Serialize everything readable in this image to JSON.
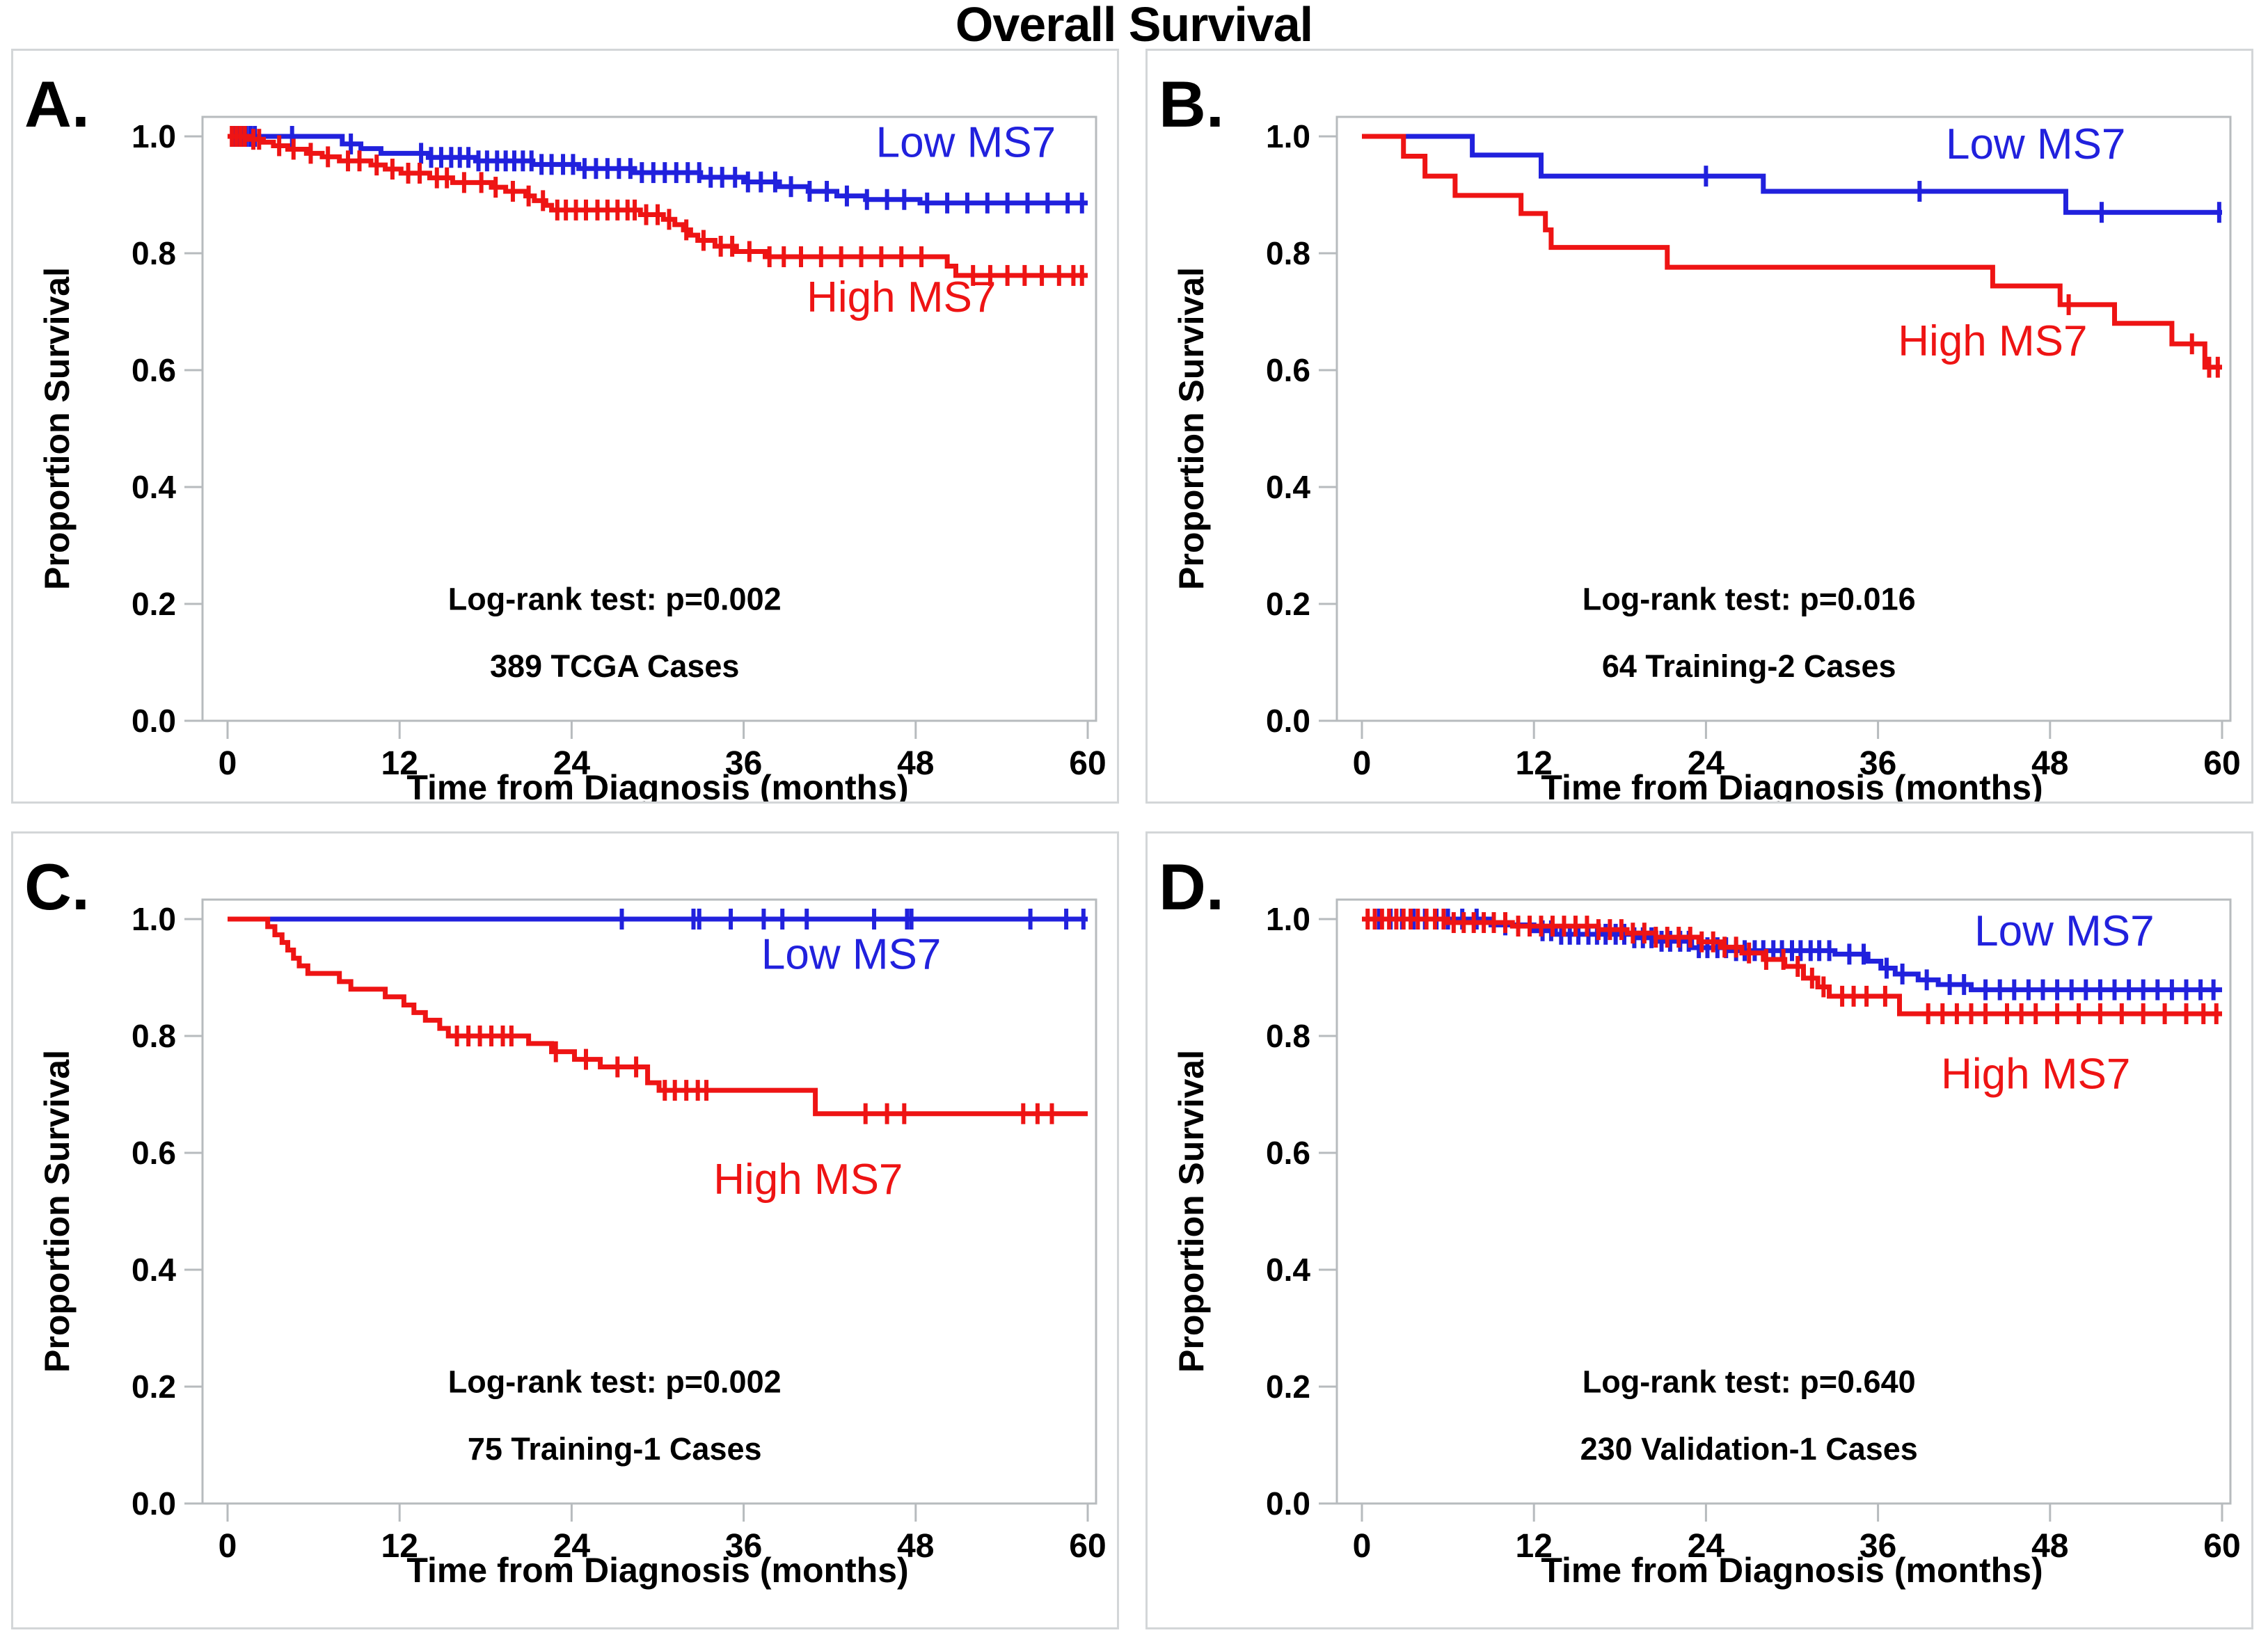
{
  "page": {
    "title": "Overall Survival"
  },
  "style": {
    "blue": "#2121dd",
    "red": "#ee1414",
    "axis_color": "#b7bbbe",
    "text_color": "#000000",
    "background": "#ffffff"
  },
  "chart_data": [
    {
      "type": "line",
      "subtype": "kaplan-meier-step",
      "panel_label": "A.",
      "xlabel": "Time from Diagnosis (months)",
      "ylabel": "Proportion Survival",
      "xlim": [
        0,
        60
      ],
      "ylim": [
        0.0,
        1.0
      ],
      "xticks": [
        0,
        12,
        24,
        36,
        48,
        60
      ],
      "yticks": [
        "1.0",
        "0.8",
        "0.6",
        "0.4",
        "0.2",
        "0.0"
      ],
      "grid": "off",
      "legend_position": "inline-right",
      "annotations": {
        "logrank": "Log-rank test: p=0.002",
        "cases": "389 TCGA Cases",
        "x_month": 27,
        "y_logrank": 0.19,
        "y_cases": 0.075
      },
      "series": [
        {
          "name": "Low MS7",
          "color": "#2121dd",
          "legend": {
            "label": "Low MS7",
            "x": 51.5,
            "y": 0.965
          },
          "steps": [
            [
              0,
              1
            ],
            [
              8,
              0.987
            ],
            [
              9.3,
              0.979
            ],
            [
              10.7,
              0.971
            ],
            [
              14,
              0.964
            ],
            [
              17.3,
              0.958
            ],
            [
              21.3,
              0.952
            ],
            [
              24.5,
              0.945
            ],
            [
              28.4,
              0.938
            ],
            [
              33,
              0.93
            ],
            [
              36,
              0.922
            ],
            [
              38.5,
              0.914
            ],
            [
              40.5,
              0.906
            ],
            [
              42.5,
              0.898
            ],
            [
              44.5,
              0.892
            ],
            [
              48.3,
              0.886
            ],
            [
              60,
              0.886
            ]
          ],
          "censors": [
            0.4,
            0.7,
            1,
            1.3,
            1.6,
            1.9,
            4.5,
            8.6,
            13.5,
            14.2,
            14.9,
            15.6,
            16.2,
            16.8,
            17.5,
            18.1,
            18.8,
            19.4,
            20,
            20.6,
            21.2,
            21.9,
            22.6,
            23.4,
            24.1,
            24.9,
            25.7,
            26.5,
            27.3,
            28.1,
            28.9,
            29.7,
            30.5,
            31.3,
            32.1,
            32.9,
            33.7,
            34.5,
            35.4,
            36.3,
            37.2,
            38.2,
            39.3,
            40.6,
            41.8,
            43.2,
            44.6,
            46,
            47.2,
            48.8,
            50.2,
            51.6,
            53,
            54.4,
            55.8,
            57.2,
            58.6,
            59.6
          ]
        },
        {
          "name": "High MS7",
          "color": "#ee1414",
          "legend": {
            "label": "High MS7",
            "x": 47,
            "y": 0.7
          },
          "steps": [
            [
              0,
              1
            ],
            [
              1.5,
              0.995
            ],
            [
              2.5,
              0.99
            ],
            [
              3.2,
              0.984
            ],
            [
              4.2,
              0.978
            ],
            [
              5.5,
              0.971
            ],
            [
              6.6,
              0.965
            ],
            [
              7.8,
              0.958
            ],
            [
              10,
              0.951
            ],
            [
              11,
              0.944
            ],
            [
              12.1,
              0.937
            ],
            [
              14.1,
              0.929
            ],
            [
              15.7,
              0.921
            ],
            [
              18.4,
              0.913
            ],
            [
              19.4,
              0.906
            ],
            [
              20.8,
              0.898
            ],
            [
              21.4,
              0.89
            ],
            [
              22.2,
              0.882
            ],
            [
              22.6,
              0.874
            ],
            [
              28.8,
              0.866
            ],
            [
              30.4,
              0.858
            ],
            [
              31.2,
              0.849
            ],
            [
              31.8,
              0.84
            ],
            [
              32.3,
              0.831
            ],
            [
              32.8,
              0.822
            ],
            [
              34,
              0.812
            ],
            [
              35.5,
              0.803
            ],
            [
              37.5,
              0.794
            ],
            [
              50.2,
              0.778
            ],
            [
              50.8,
              0.762
            ],
            [
              60,
              0.762
            ]
          ],
          "censors": [
            0.3,
            0.6,
            0.9,
            1.2,
            1.8,
            2.2,
            3.6,
            4.6,
            5.8,
            7,
            8.4,
            9.2,
            10.4,
            11.5,
            12.6,
            13.4,
            14.6,
            15.3,
            16.5,
            17.7,
            18.7,
            19.9,
            21,
            22,
            23,
            23.6,
            24.3,
            25,
            25.8,
            26.5,
            27.2,
            27.9,
            28.4,
            29.2,
            30,
            30.8,
            32,
            33.2,
            34.4,
            35.2,
            36.4,
            37.8,
            38.8,
            40,
            41.4,
            42.8,
            44.2,
            45.6,
            47,
            48.4,
            52,
            53.2,
            54.4,
            55.6,
            56.8,
            58,
            59,
            59.6
          ]
        }
      ]
    },
    {
      "type": "line",
      "subtype": "kaplan-meier-step",
      "panel_label": "B.",
      "xlabel": "Time from Diagnosis (months)",
      "ylabel": "Proportion Survival",
      "xlim": [
        0,
        60
      ],
      "ylim": [
        0.0,
        1.0
      ],
      "xticks": [
        0,
        12,
        24,
        36,
        48,
        60
      ],
      "yticks": [
        "1.0",
        "0.8",
        "0.6",
        "0.4",
        "0.2",
        "0.0"
      ],
      "grid": "off",
      "legend_position": "inline-right",
      "annotations": {
        "logrank": "Log-rank test: p=0.016",
        "cases": "64 Training-2 Cases",
        "x_month": 27,
        "y_logrank": 0.19,
        "y_cases": 0.075
      },
      "series": [
        {
          "name": "Low MS7",
          "color": "#2121dd",
          "legend": {
            "label": "Low MS7",
            "x": 47,
            "y": 0.962
          },
          "steps": [
            [
              0,
              1
            ],
            [
              7.7,
              0.968
            ],
            [
              12.5,
              0.932
            ],
            [
              28,
              0.906
            ],
            [
              49.1,
              0.87
            ],
            [
              60,
              0.87
            ]
          ],
          "censors": [
            24,
            38.9,
            51.6,
            59.8
          ]
        },
        {
          "name": "High MS7",
          "color": "#ee1414",
          "legend": {
            "label": "High MS7",
            "x": 44,
            "y": 0.625
          },
          "steps": [
            [
              0,
              1
            ],
            [
              2.9,
              0.966
            ],
            [
              4.4,
              0.932
            ],
            [
              6.5,
              0.899
            ],
            [
              11.1,
              0.868
            ],
            [
              12.8,
              0.84
            ],
            [
              13.2,
              0.81
            ],
            [
              21.3,
              0.776
            ],
            [
              44,
              0.744
            ],
            [
              48.7,
              0.712
            ],
            [
              52.5,
              0.68
            ],
            [
              56.5,
              0.645
            ],
            [
              58.8,
              0.605
            ],
            [
              60,
              0.605
            ]
          ],
          "censors": [
            49.3,
            57.9,
            59.1,
            59.7
          ]
        }
      ]
    },
    {
      "type": "line",
      "subtype": "kaplan-meier-step",
      "panel_label": "C.",
      "xlabel": "Time from Diagnosis (months)",
      "ylabel": "Proportion Survival",
      "xlim": [
        0,
        60
      ],
      "ylim": [
        0.0,
        1.0
      ],
      "xticks": [
        0,
        12,
        24,
        36,
        48,
        60
      ],
      "yticks": [
        "1.0",
        "0.8",
        "0.6",
        "0.4",
        "0.2",
        "0.0"
      ],
      "grid": "off",
      "legend_position": "inline-right",
      "annotations": {
        "logrank": "Log-rank test: p=0.002",
        "cases": "75 Training-1 Cases",
        "x_month": 27,
        "y_logrank": 0.19,
        "y_cases": 0.075
      },
      "series": [
        {
          "name": "Low MS7",
          "color": "#2121dd",
          "legend": {
            "label": "Low MS7",
            "x": 43.5,
            "y": 0.915
          },
          "steps": [
            [
              0,
              1
            ],
            [
              60,
              1
            ]
          ],
          "censors": [
            27.5,
            32.5,
            32.9,
            35.1,
            37.4,
            38.7,
            40.4,
            45.1,
            47.4,
            47.7,
            56,
            58.5,
            59.7
          ]
        },
        {
          "name": "High MS7",
          "color": "#ee1414",
          "legend": {
            "label": "High MS7",
            "x": 40.5,
            "y": 0.53
          },
          "steps": [
            [
              0,
              1
            ],
            [
              2.8,
              0.987
            ],
            [
              3.3,
              0.973
            ],
            [
              3.8,
              0.96
            ],
            [
              4.2,
              0.947
            ],
            [
              4.6,
              0.933
            ],
            [
              5,
              0.92
            ],
            [
              5.6,
              0.907
            ],
            [
              7.8,
              0.893
            ],
            [
              8.6,
              0.88
            ],
            [
              11,
              0.867
            ],
            [
              12.3,
              0.853
            ],
            [
              13,
              0.84
            ],
            [
              13.8,
              0.827
            ],
            [
              14.8,
              0.813
            ],
            [
              15.4,
              0.8
            ],
            [
              21,
              0.787
            ],
            [
              22.6,
              0.773
            ],
            [
              24.2,
              0.76
            ],
            [
              26,
              0.747
            ],
            [
              29.3,
              0.72
            ],
            [
              30.1,
              0.707
            ],
            [
              41,
              0.667
            ],
            [
              60,
              0.667
            ]
          ],
          "censors": [
            16,
            16.8,
            17.6,
            18.4,
            19.2,
            19.8,
            22.9,
            25,
            27.2,
            28.5,
            30.5,
            31.2,
            32,
            32.8,
            33.4,
            44.5,
            46,
            47.2,
            55.5,
            56.5,
            57.5
          ]
        }
      ]
    },
    {
      "type": "line",
      "subtype": "kaplan-meier-step",
      "panel_label": "D.",
      "xlabel": "Time from Diagnosis (months)",
      "ylabel": "Proportion Survival",
      "xlim": [
        0,
        60
      ],
      "ylim": [
        0.0,
        1.0
      ],
      "xticks": [
        0,
        12,
        24,
        36,
        48,
        60
      ],
      "yticks": [
        "1.0",
        "0.8",
        "0.6",
        "0.4",
        "0.2",
        "0.0"
      ],
      "grid": "off",
      "legend_position": "inline-right",
      "annotations": {
        "logrank": "Log-rank test: p=0.640",
        "cases": "230 Validation-1 Cases",
        "x_month": 27,
        "y_logrank": 0.19,
        "y_cases": 0.075
      },
      "series": [
        {
          "name": "Low MS7",
          "color": "#2121dd",
          "legend": {
            "label": "Low MS7",
            "x": 49,
            "y": 0.955
          },
          "steps": [
            [
              0,
              1
            ],
            [
              9,
              0.99
            ],
            [
              12,
              0.98
            ],
            [
              13.5,
              0.974
            ],
            [
              19,
              0.968
            ],
            [
              20.5,
              0.962
            ],
            [
              23,
              0.951
            ],
            [
              25.5,
              0.946
            ],
            [
              33,
              0.94
            ],
            [
              35.3,
              0.928
            ],
            [
              36.2,
              0.916
            ],
            [
              37.2,
              0.906
            ],
            [
              38.8,
              0.896
            ],
            [
              40.2,
              0.888
            ],
            [
              42.5,
              0.879
            ],
            [
              60,
              0.879
            ]
          ],
          "censors": [
            1.2,
            2,
            2.8,
            3.6,
            4.4,
            5.2,
            6,
            7,
            8,
            10,
            12.6,
            13.2,
            13.9,
            14.5,
            15.1,
            15.8,
            16.4,
            17,
            17.7,
            18.3,
            19,
            19.6,
            20.2,
            20.9,
            21.5,
            22.2,
            22.8,
            23.5,
            24.1,
            24.8,
            25.4,
            26.1,
            26.7,
            27.4,
            28,
            28.7,
            29.3,
            30,
            30.6,
            31.3,
            31.9,
            32.6,
            34,
            35,
            36.6,
            37.7,
            39.4,
            41,
            42,
            43.5,
            44.5,
            45.5,
            46.5,
            47.5,
            48.5,
            49.5,
            50.5,
            51.5,
            52.5,
            53.5,
            54.5,
            55.5,
            56.5,
            57.5,
            58.5,
            59.4
          ]
        },
        {
          "name": "High MS7",
          "color": "#ee1414",
          "legend": {
            "label": "High MS7",
            "x": 47,
            "y": 0.71
          },
          "steps": [
            [
              0,
              1
            ],
            [
              6,
              0.994
            ],
            [
              10.5,
              0.988
            ],
            [
              16.5,
              0.982
            ],
            [
              18.5,
              0.976
            ],
            [
              20.5,
              0.969
            ],
            [
              23.5,
              0.961
            ],
            [
              25,
              0.952
            ],
            [
              26.5,
              0.942
            ],
            [
              28,
              0.931
            ],
            [
              29.5,
              0.919
            ],
            [
              30.8,
              0.899
            ],
            [
              31.8,
              0.884
            ],
            [
              32.6,
              0.868
            ],
            [
              37.5,
              0.838
            ],
            [
              60,
              0.838
            ]
          ],
          "censors": [
            0.4,
            0.9,
            1.4,
            1.9,
            2.4,
            2.9,
            3.4,
            3.9,
            4.5,
            5.1,
            5.7,
            6.4,
            7.1,
            7.8,
            8.5,
            9.2,
            10,
            10.9,
            11.7,
            12.5,
            13.3,
            14.1,
            14.9,
            15.7,
            16.5,
            17.3,
            18.1,
            18.9,
            19.7,
            20.5,
            21.3,
            22.1,
            22.9,
            23.7,
            24.5,
            25.3,
            26.1,
            27,
            28.2,
            29.4,
            30.4,
            31.4,
            32.2,
            33.5,
            34.3,
            35.2,
            36.5,
            39.5,
            40.5,
            41.5,
            42.5,
            43.5,
            45,
            46,
            47,
            48.5,
            50,
            51.5,
            53,
            54.5,
            56,
            57.5,
            58.7,
            59.6
          ]
        }
      ]
    }
  ]
}
